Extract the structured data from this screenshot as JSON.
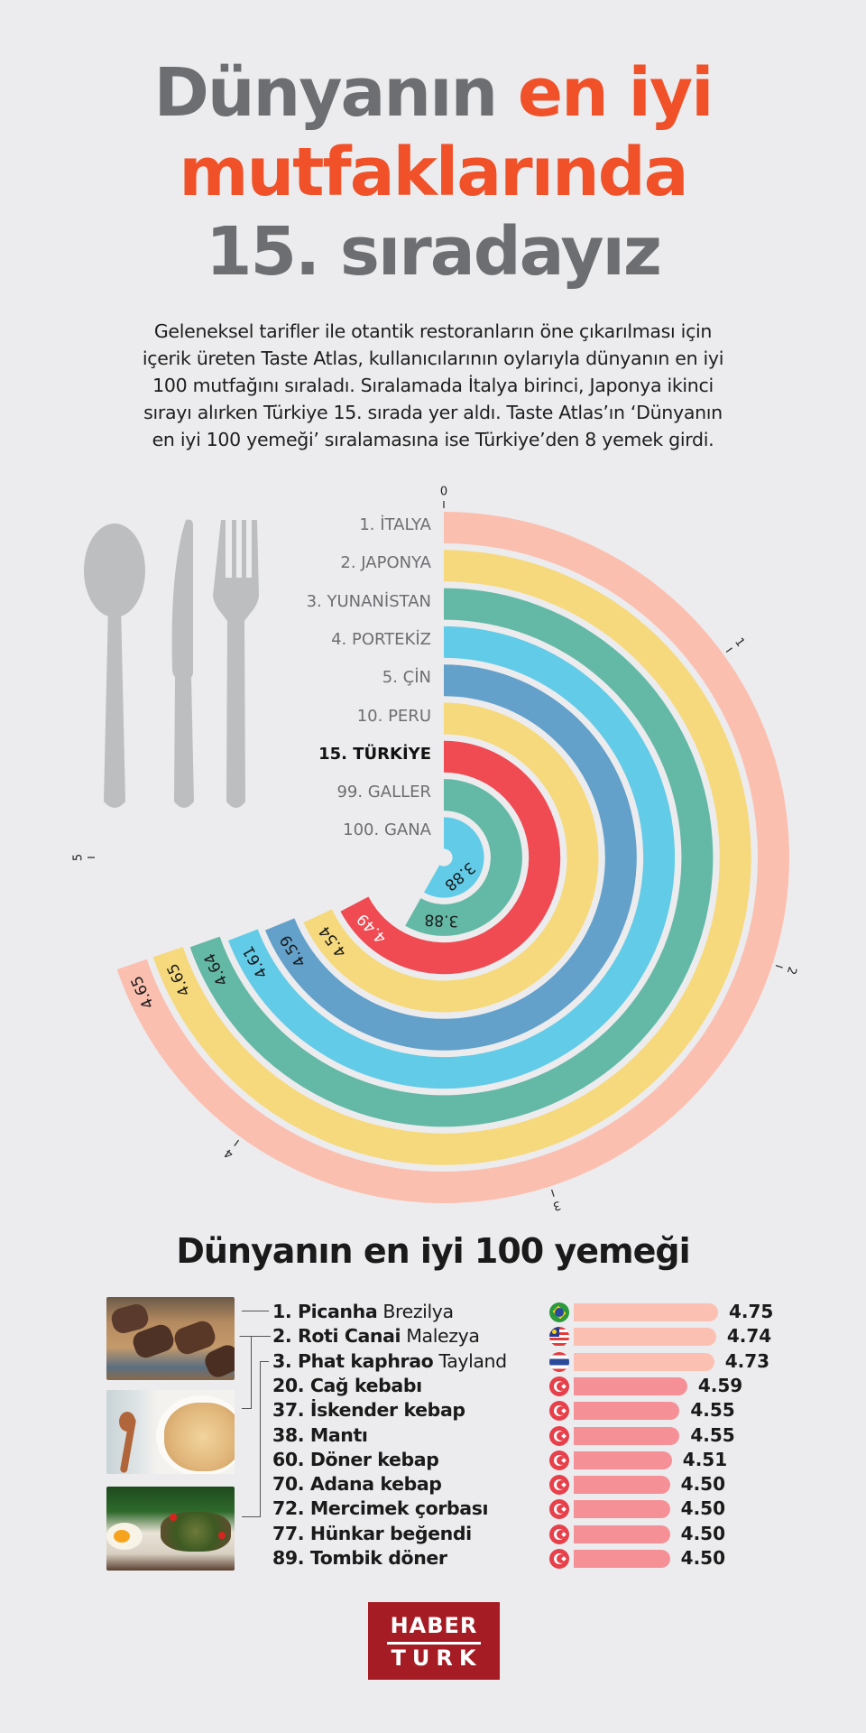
{
  "header": {
    "title_line1_part1": "Dünyanın",
    "title_line1_part2": "en iyi",
    "title_line2": "mutfaklarında",
    "title_line3": "15. sıradayız",
    "intro_lines": [
      "Geleneksel tarifler ile otantik restoranların öne çıkarılması için",
      "içerik üreten Taste Atlas, kullanıcılarının oylarıyla dünyanın en iyi",
      "100 mutfağını sıraladı. Sıralamada İtalya birinci, Japonya ikinci",
      "sırayı alırken Türkiye 15. sırada yer aldı. Taste Atlas’ın ‘Dünyanın",
      "en iyi 100 yemeği’ sıralamasına ise Türkiye’den 8 yemek girdi."
    ]
  },
  "colors": {
    "background": "#ececee",
    "title_gray": "#6d6e71",
    "title_orange": "#f05129",
    "salmon": "#fbbfb0",
    "yellow": "#f6d97c",
    "teal": "#64b9a6",
    "sky": "#62cbe8",
    "steel": "#63a1cb",
    "red": "#f04a52",
    "bar_top3": "#fcc0b3",
    "bar_tr": "#f59096",
    "logo_red": "#a51c24"
  },
  "chart_data": [
    {
      "type": "radial_bar",
      "title": "Dünyanın en iyi mutfakları",
      "axis_ticks": [
        "0",
        "1",
        "2",
        "3",
        "4",
        "5"
      ],
      "axis_range": [
        0,
        5
      ],
      "grid": false,
      "legend": "none",
      "categories": [
        "1. İTALYA",
        "2. JAPONYA",
        "3. YUNANİSTAN",
        "4. PORTEKİZ",
        "5. ÇİN",
        "10. PERU",
        "15. TÜRKİYE",
        "99. GALLER",
        "100. GANA"
      ],
      "values": [
        4.65,
        4.65,
        4.64,
        4.61,
        4.59,
        4.54,
        4.49,
        3.88,
        3.88
      ],
      "value_labels": [
        "4.65",
        "4.65",
        "4.64",
        "4.61",
        "4.59",
        "4.54",
        "4.49",
        "3.88",
        "3.88"
      ],
      "bar_colors": [
        "#fbbfb0",
        "#f6d97c",
        "#64b9a6",
        "#62cbe8",
        "#63a1cb",
        "#f6d97c",
        "#f04a52",
        "#64b9a6",
        "#62cbe8"
      ],
      "highlight": "15. TÜRKİYE"
    },
    {
      "type": "bar",
      "orientation": "horizontal",
      "title": "Dünyanın en iyi 100 yemeği",
      "categories": [
        "1. Picanha",
        "2. Roti Canai",
        "3. Phat kaphrao",
        "20. Cağ kebabı",
        "37. İskender kebap",
        "38. Mantı",
        "60. Döner kebap",
        "70. Adana kebap",
        "72. Mercimek çorbası",
        "77. Hünkar beğendi",
        "89. Tombik döner"
      ],
      "values": [
        4.75,
        4.74,
        4.73,
        4.59,
        4.55,
        4.55,
        4.51,
        4.5,
        4.5,
        4.5,
        4.5
      ]
    }
  ],
  "radial": {
    "ticks": [
      {
        "label": "0",
        "value": 0
      },
      {
        "label": "1",
        "value": 1
      },
      {
        "label": "2",
        "value": 2
      },
      {
        "label": "3",
        "value": 3
      },
      {
        "label": "4",
        "value": 4
      },
      {
        "label": "5",
        "value": 5
      }
    ],
    "rings": [
      {
        "label": "1. İTALYA",
        "value": 4.65,
        "value_label": "4.65",
        "color": "#fbbfb0",
        "highlight": false,
        "text_color": "#1a1a1a"
      },
      {
        "label": "2. JAPONYA",
        "value": 4.65,
        "value_label": "4.65",
        "color": "#f6d97c",
        "highlight": false,
        "text_color": "#1a1a1a"
      },
      {
        "label": "3. YUNANİSTAN",
        "value": 4.64,
        "value_label": "4.64",
        "color": "#64b9a6",
        "highlight": false,
        "text_color": "#1a1a1a"
      },
      {
        "label": "4. PORTEKİZ",
        "value": 4.61,
        "value_label": "4.61",
        "color": "#62cbe8",
        "highlight": false,
        "text_color": "#1a1a1a"
      },
      {
        "label": "5. ÇİN",
        "value": 4.59,
        "value_label": "4.59",
        "color": "#63a1cb",
        "highlight": false,
        "text_color": "#1a1a1a"
      },
      {
        "label": "10. PERU",
        "value": 4.54,
        "value_label": "4.54",
        "color": "#f6d97c",
        "highlight": false,
        "text_color": "#1a1a1a"
      },
      {
        "label": "15. TÜRKİYE",
        "value": 4.49,
        "value_label": "4.49",
        "color": "#f04a52",
        "highlight": true,
        "text_color": "#ffffff"
      },
      {
        "label": "99. GALLER",
        "value": 3.88,
        "value_label": "3.88",
        "color": "#64b9a6",
        "highlight": false,
        "text_color": "#1a1a1a"
      },
      {
        "label": "100. GANA",
        "value": 3.88,
        "value_label": "3.88",
        "color": "#62cbe8",
        "highlight": false,
        "text_color": "#1a1a1a"
      }
    ]
  },
  "dishes": {
    "title": "Dünyanın en iyi 100 yemeği",
    "photos": [
      {
        "name": "picanha-photo",
        "alt": "Picanha"
      },
      {
        "name": "roti-canai-photo",
        "alt": "Roti Canai"
      },
      {
        "name": "phat-kaphrao-photo",
        "alt": "Phat kaphrao"
      }
    ],
    "items": [
      {
        "rank_name": "1. Picanha",
        "country": "Brezilya",
        "flag": "brazil-flag-icon",
        "score": "4.75",
        "value": 4.75
      },
      {
        "rank_name": "2. Roti Canai",
        "country": "Malezya",
        "flag": "malaysia-flag-icon",
        "score": "4.74",
        "value": 4.74
      },
      {
        "rank_name": "3. Phat kaphrao",
        "country": "Tayland",
        "flag": "thailand-flag-icon",
        "score": "4.73",
        "value": 4.73
      },
      {
        "rank_name": "20. Cağ kebabı",
        "country": "",
        "flag": "turkey-flag-icon",
        "score": "4.59",
        "value": 4.59
      },
      {
        "rank_name": "37. İskender kebap",
        "country": "",
        "flag": "turkey-flag-icon",
        "score": "4.55",
        "value": 4.55
      },
      {
        "rank_name": "38. Mantı",
        "country": "",
        "flag": "turkey-flag-icon",
        "score": "4.55",
        "value": 4.55
      },
      {
        "rank_name": "60. Döner kebap",
        "country": "",
        "flag": "turkey-flag-icon",
        "score": "4.51",
        "value": 4.51
      },
      {
        "rank_name": "70. Adana kebap",
        "country": "",
        "flag": "turkey-flag-icon",
        "score": "4.50",
        "value": 4.5
      },
      {
        "rank_name": "72. Mercimek çorbası",
        "country": "",
        "flag": "turkey-flag-icon",
        "score": "4.50",
        "value": 4.5
      },
      {
        "rank_name": "77. Hünkar beğendi",
        "country": "",
        "flag": "turkey-flag-icon",
        "score": "4.50",
        "value": 4.5
      },
      {
        "rank_name": "89. Tombik döner",
        "country": "",
        "flag": "turkey-flag-icon",
        "score": "4.50",
        "value": 4.5
      }
    ]
  },
  "footer": {
    "logo_line1": "HABER",
    "logo_line2": "TURK"
  }
}
